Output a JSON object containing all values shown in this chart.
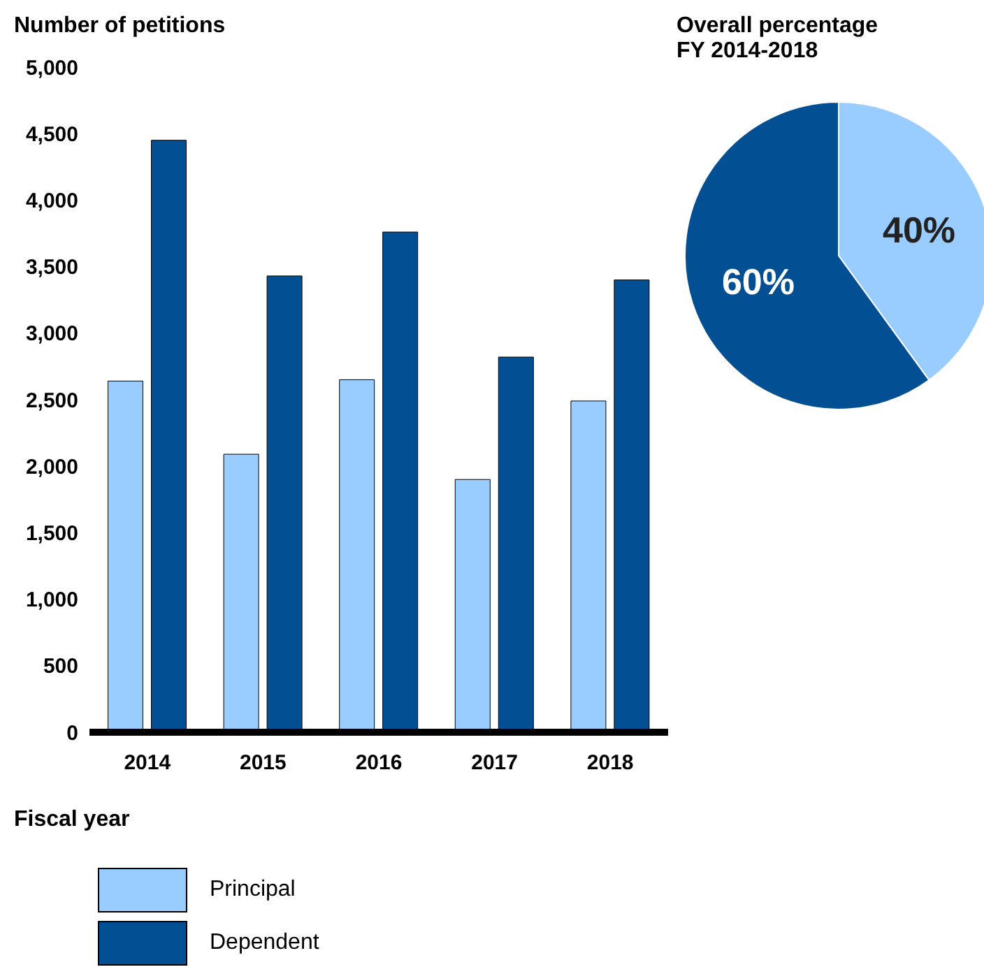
{
  "chart_data": [
    {
      "type": "bar",
      "ylabel": "Number of petitions",
      "xlabel": "Fiscal year",
      "categories": [
        "2014",
        "2015",
        "2016",
        "2017",
        "2018"
      ],
      "series": [
        {
          "name": "Principal",
          "color": "#99ccff",
          "values": [
            2640,
            2090,
            2650,
            1900,
            2490
          ]
        },
        {
          "name": "Dependent",
          "color": "#034f93",
          "values": [
            4450,
            3430,
            3760,
            2820,
            3400
          ]
        }
      ],
      "ylim": [
        0,
        5000
      ],
      "yticks": [
        {
          "value": 0,
          "label": "0"
        },
        {
          "value": 500,
          "label": "500"
        },
        {
          "value": 1000,
          "label": "1,000"
        },
        {
          "value": 1500,
          "label": "1,500"
        },
        {
          "value": 2000,
          "label": "2,000"
        },
        {
          "value": 2500,
          "label": "2,500"
        },
        {
          "value": 3000,
          "label": "3,000"
        },
        {
          "value": 3500,
          "label": "3,500"
        },
        {
          "value": 4000,
          "label": "4,000"
        },
        {
          "value": 4500,
          "label": "4,500"
        },
        {
          "value": 5000,
          "label": "5,000"
        }
      ],
      "legend": "bottom left"
    },
    {
      "type": "pie",
      "title": "Overall percentage\nFY 2014-2018",
      "categories": [
        null,
        null
      ],
      "values": [
        40,
        60
      ],
      "colors": [
        "#99ccff",
        "#034f93"
      ],
      "value_labels": [
        "40%",
        "60%"
      ]
    }
  ]
}
